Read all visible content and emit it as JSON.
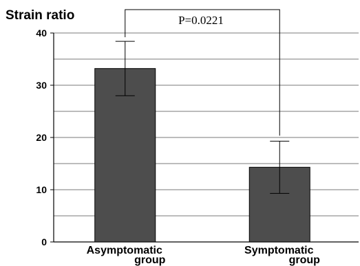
{
  "chart_data": {
    "type": "bar",
    "ylabel": "Strain ratio",
    "ylim": [
      0,
      40
    ],
    "yticks": [
      0,
      10,
      20,
      30,
      40
    ],
    "grid": true,
    "categories": [
      [
        "Asymptomatic",
        "group"
      ],
      [
        "Symptomatic",
        "group"
      ]
    ],
    "values": [
      33.2,
      14.3
    ],
    "error": [
      5.2,
      5.0
    ],
    "bar_color": "#4d4d4d",
    "annotation": {
      "text": "P=0.0221",
      "between": [
        0,
        1
      ]
    }
  }
}
